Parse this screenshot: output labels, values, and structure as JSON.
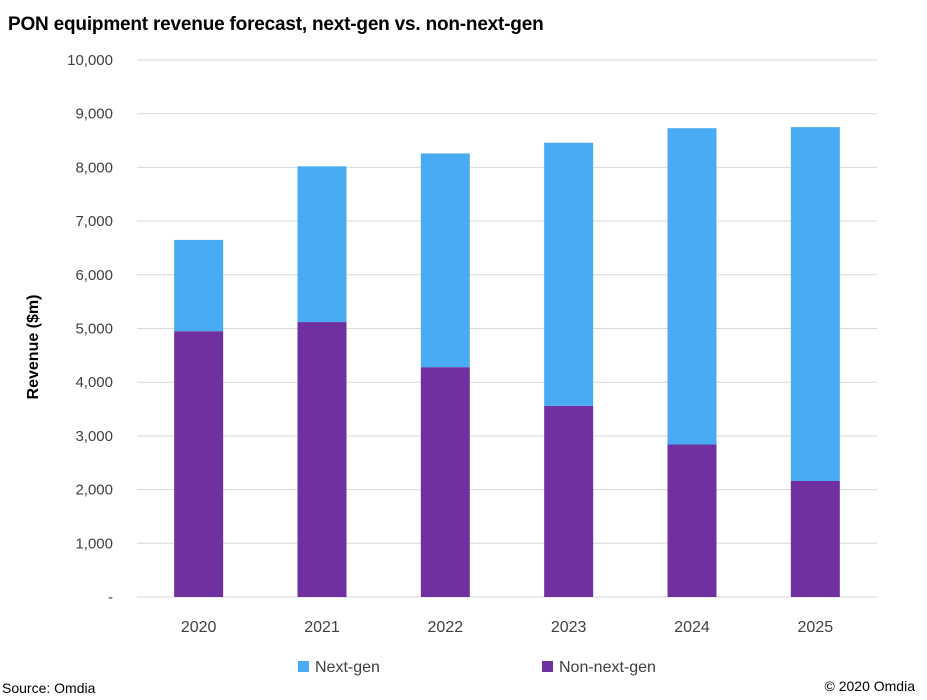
{
  "header": {
    "title": "PON equipment revenue forecast, next-gen vs. non-next-gen"
  },
  "footer": {
    "source": "Source: Omdia",
    "copyright": "© 2020 Omdia"
  },
  "colors": {
    "next_gen": "#4aabf5",
    "non_next_gen": "#7030a0",
    "grid": "#d9d9d9",
    "text": "#404040"
  },
  "chart_data": {
    "type": "bar",
    "stacked": true,
    "title": "PON equipment revenue forecast, next-gen vs. non-next-gen",
    "xlabel": "",
    "ylabel": "Revenue ($m)",
    "categories": [
      "2020",
      "2021",
      "2022",
      "2023",
      "2024",
      "2025"
    ],
    "ylim": [
      0,
      10000
    ],
    "yticks": [
      0,
      1000,
      2000,
      3000,
      4000,
      5000,
      6000,
      7000,
      8000,
      9000,
      10000
    ],
    "ytick_labels": [
      "-",
      "1,000",
      "2,000",
      "3,000",
      "4,000",
      "5,000",
      "6,000",
      "7,000",
      "8,000",
      "9,000",
      "10,000"
    ],
    "grid": true,
    "legend_position": "bottom",
    "series": [
      {
        "name": "Non-next-gen",
        "values": [
          4950,
          5120,
          4280,
          3560,
          2840,
          2160
        ]
      },
      {
        "name": "Next-gen",
        "values": [
          1700,
          2900,
          3980,
          4900,
          5890,
          6590
        ]
      }
    ],
    "legend": [
      {
        "name": "Next-gen",
        "color_key": "next_gen"
      },
      {
        "name": "Non-next-gen",
        "color_key": "non_next_gen"
      }
    ]
  }
}
